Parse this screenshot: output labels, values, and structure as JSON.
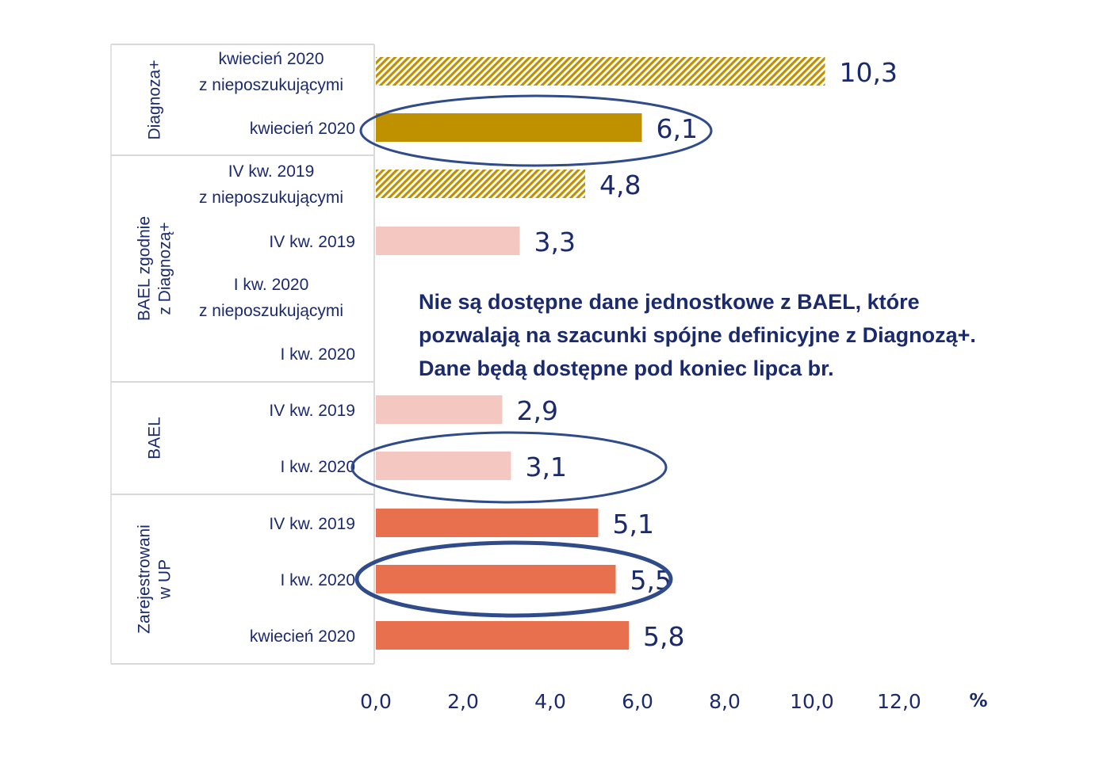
{
  "chart_data": {
    "type": "bar",
    "orientation": "horizontal",
    "unit": "%",
    "xlim": [
      0,
      12
    ],
    "xticks": [
      "0,0",
      "2,0",
      "4,0",
      "6,0",
      "8,0",
      "10,0",
      "12,0"
    ],
    "groups": [
      {
        "name": "Diagnoza+",
        "name_lines": [
          "Diagnoza+"
        ]
      },
      {
        "name": "BAEL zgodnie z Diagnozą+",
        "name_lines": [
          "BAEL zgodnie",
          "z Diagnozą+"
        ]
      },
      {
        "name": "BAEL",
        "name_lines": [
          "BAEL"
        ]
      },
      {
        "name": "Zarejestrowani w UP",
        "name_lines": [
          "Zarejestrowani",
          "w UP"
        ]
      }
    ],
    "bars": [
      {
        "group": "Diagnoza+",
        "label_lines": [
          "kwiecień 2020",
          "z nieposzukującymi"
        ],
        "value": 10.3,
        "value_label": "10,3",
        "style": "hatched-gold"
      },
      {
        "group": "Diagnoza+",
        "label_lines": [
          "kwiecień 2020"
        ],
        "value": 6.1,
        "value_label": "6,1",
        "style": "gold",
        "circled": true
      },
      {
        "group": "BAEL zgodnie z Diagnozą+",
        "label_lines": [
          "IV kw. 2019",
          "z nieposzukującymi"
        ],
        "value": 4.8,
        "value_label": "4,8",
        "style": "hatched-gold"
      },
      {
        "group": "BAEL zgodnie z Diagnozą+",
        "label_lines": [
          "IV kw. 2019"
        ],
        "value": 3.3,
        "value_label": "3,3",
        "style": "pink"
      },
      {
        "group": "BAEL zgodnie z Diagnozą+",
        "label_lines": [
          "I kw. 2020",
          "z nieposzukującymi"
        ],
        "value": null,
        "value_label": "",
        "style": "none"
      },
      {
        "group": "BAEL zgodnie z Diagnozą+",
        "label_lines": [
          "I kw. 2020"
        ],
        "value": null,
        "value_label": "",
        "style": "none"
      },
      {
        "group": "BAEL",
        "label_lines": [
          "IV kw. 2019"
        ],
        "value": 2.9,
        "value_label": "2,9",
        "style": "pink"
      },
      {
        "group": "BAEL",
        "label_lines": [
          "I kw. 2020"
        ],
        "value": 3.1,
        "value_label": "3,1",
        "style": "pink",
        "circled": true
      },
      {
        "group": "Zarejestrowani w UP",
        "label_lines": [
          "IV kw. 2019"
        ],
        "value": 5.1,
        "value_label": "5,1",
        "style": "coral"
      },
      {
        "group": "Zarejestrowani w UP",
        "label_lines": [
          "I kw. 2020"
        ],
        "value": 5.5,
        "value_label": "5,5",
        "style": "coral",
        "circled": true
      },
      {
        "group": "Zarejestrowani w UP",
        "label_lines": [
          "kwiecień 2020"
        ],
        "value": 5.8,
        "value_label": "5,8",
        "style": "coral"
      }
    ],
    "colors": {
      "gold": "#bf9000",
      "pink": "#f4c7c0",
      "coral": "#e8704f",
      "text": "#1a2a6c",
      "ellipse": "#2f4b8a",
      "frame": "#d9d9d9"
    }
  },
  "note": {
    "text": "Nie są dostępne dane jednostkowe z BAEL, które pozwalają na szacunki spójne definicyjne z Diagnozą+. Dane będą dostępne pod koniec lipca br."
  }
}
